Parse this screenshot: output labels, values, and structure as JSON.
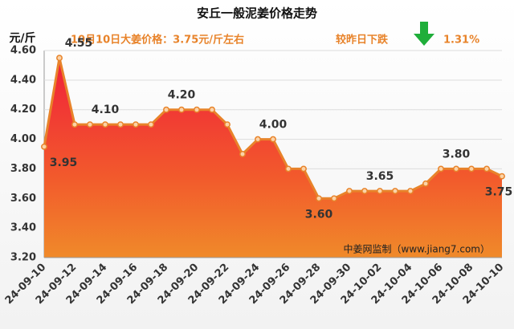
{
  "chart_data": {
    "type": "area",
    "title": "安丘一般泥姜价格走势",
    "y_unit": "元/斤",
    "subtitle": "10月10日大姜价格：3.75元/斤左右",
    "change_label": "较昨日下跌",
    "change_value": "1.31%",
    "watermark": "中姜网监制（www.jiang7.com）",
    "categories": [
      "24-09-10",
      null,
      "24-09-12",
      null,
      "24-09-14",
      null,
      "24-09-16",
      null,
      "24-09-18",
      null,
      "24-09-20",
      null,
      "24-09-22",
      null,
      "24-09-24",
      null,
      "24-09-26",
      null,
      "24-09-28",
      null,
      "24-09-30",
      null,
      "24-10-02",
      null,
      "24-10-04",
      null,
      "24-10-06",
      null,
      "24-10-08",
      null,
      "24-10-10"
    ],
    "values": [
      3.95,
      4.55,
      4.1,
      4.1,
      4.1,
      4.1,
      4.1,
      4.1,
      4.2,
      4.2,
      4.2,
      4.2,
      4.1,
      3.9,
      4.0,
      4.0,
      3.8,
      3.8,
      3.6,
      3.6,
      3.65,
      3.65,
      3.65,
      3.65,
      3.65,
      3.7,
      3.8,
      3.8,
      3.8,
      3.8,
      3.75
    ],
    "value_labels": [
      "3.95",
      "4.55",
      null,
      null,
      "4.10",
      null,
      null,
      null,
      null,
      "4.20",
      null,
      null,
      null,
      null,
      null,
      "4.00",
      null,
      null,
      "3.60",
      null,
      null,
      null,
      "3.65",
      null,
      null,
      null,
      null,
      "3.80",
      null,
      null,
      "3.75"
    ],
    "color": "#e8832a",
    "ylim": [
      3.2,
      4.6
    ],
    "yticks": [
      {
        "value": 3.2,
        "label": "3.20"
      },
      {
        "value": 3.4,
        "label": "3.40"
      },
      {
        "value": 3.6,
        "label": "3.60"
      },
      {
        "value": 3.8,
        "label": "3.80"
      },
      {
        "value": 4.0,
        "label": "4.00"
      },
      {
        "value": 4.2,
        "label": "4.20"
      },
      {
        "value": 4.4,
        "label": "4.40"
      },
      {
        "value": 4.6,
        "label": "4.60"
      }
    ],
    "grid": true
  }
}
